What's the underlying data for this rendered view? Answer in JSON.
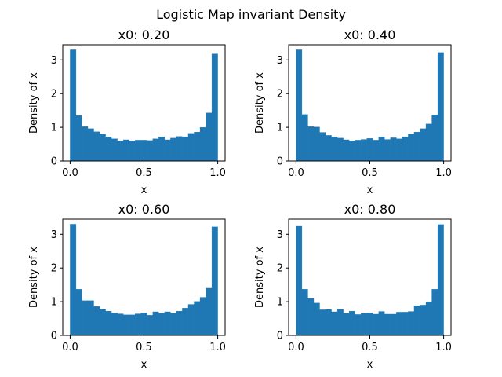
{
  "figure": {
    "suptitle": "Logistic Map invariant Density"
  },
  "style": {
    "bar_color": "#1f77b4",
    "axis_color": "#000000"
  },
  "chart_data": [
    {
      "type": "bar",
      "title": "x0: 0.20",
      "xlabel": "x",
      "ylabel": "Density of x",
      "xlim": [
        -0.05,
        1.05
      ],
      "ylim": [
        0,
        3.45
      ],
      "xticks": [
        "0.0",
        "0.5",
        "1.0"
      ],
      "yticks": [
        "0",
        "1",
        "2",
        "3"
      ],
      "bin_edges_start": 0,
      "bin_width": 0.04,
      "values": [
        3.3,
        1.35,
        1.02,
        0.96,
        0.87,
        0.8,
        0.72,
        0.66,
        0.6,
        0.63,
        0.6,
        0.62,
        0.62,
        0.61,
        0.66,
        0.72,
        0.63,
        0.68,
        0.73,
        0.72,
        0.82,
        0.86,
        1.0,
        1.43,
        3.18
      ]
    },
    {
      "type": "bar",
      "title": "x0: 0.40",
      "xlabel": "x",
      "ylabel": "Density of x",
      "xlim": [
        -0.05,
        1.05
      ],
      "ylim": [
        0,
        3.45
      ],
      "xticks": [
        "0.0",
        "0.5",
        "1.0"
      ],
      "yticks": [
        "0",
        "1",
        "2",
        "3"
      ],
      "bin_edges_start": 0,
      "bin_width": 0.04,
      "values": [
        3.3,
        1.38,
        1.02,
        1.01,
        0.85,
        0.76,
        0.72,
        0.68,
        0.63,
        0.6,
        0.62,
        0.64,
        0.67,
        0.62,
        0.72,
        0.64,
        0.69,
        0.66,
        0.72,
        0.8,
        0.86,
        0.96,
        1.1,
        1.37,
        3.22
      ]
    },
    {
      "type": "bar",
      "title": "x0: 0.60",
      "xlabel": "x",
      "ylabel": "Density of x",
      "xlim": [
        -0.05,
        1.05
      ],
      "ylim": [
        0,
        3.45
      ],
      "xticks": [
        "0.0",
        "0.5",
        "1.0"
      ],
      "yticks": [
        "0",
        "1",
        "2",
        "3"
      ],
      "bin_edges_start": 0,
      "bin_width": 0.04,
      "values": [
        3.3,
        1.37,
        1.03,
        1.03,
        0.86,
        0.78,
        0.72,
        0.66,
        0.64,
        0.61,
        0.61,
        0.64,
        0.67,
        0.6,
        0.7,
        0.66,
        0.7,
        0.66,
        0.72,
        0.81,
        0.92,
        1.01,
        1.13,
        1.4,
        3.22
      ]
    },
    {
      "type": "bar",
      "title": "x0: 0.80",
      "xlabel": "x",
      "ylabel": "Density of x",
      "xlim": [
        -0.05,
        1.05
      ],
      "ylim": [
        0,
        3.45
      ],
      "xticks": [
        "0.0",
        "0.5",
        "1.0"
      ],
      "yticks": [
        "0",
        "1",
        "2",
        "3"
      ],
      "bin_edges_start": 0,
      "bin_width": 0.04,
      "values": [
        3.24,
        1.37,
        1.1,
        0.96,
        0.76,
        0.77,
        0.7,
        0.78,
        0.66,
        0.72,
        0.62,
        0.66,
        0.67,
        0.63,
        0.71,
        0.63,
        0.63,
        0.69,
        0.69,
        0.71,
        0.88,
        0.9,
        1.0,
        1.37,
        3.29
      ]
    }
  ]
}
